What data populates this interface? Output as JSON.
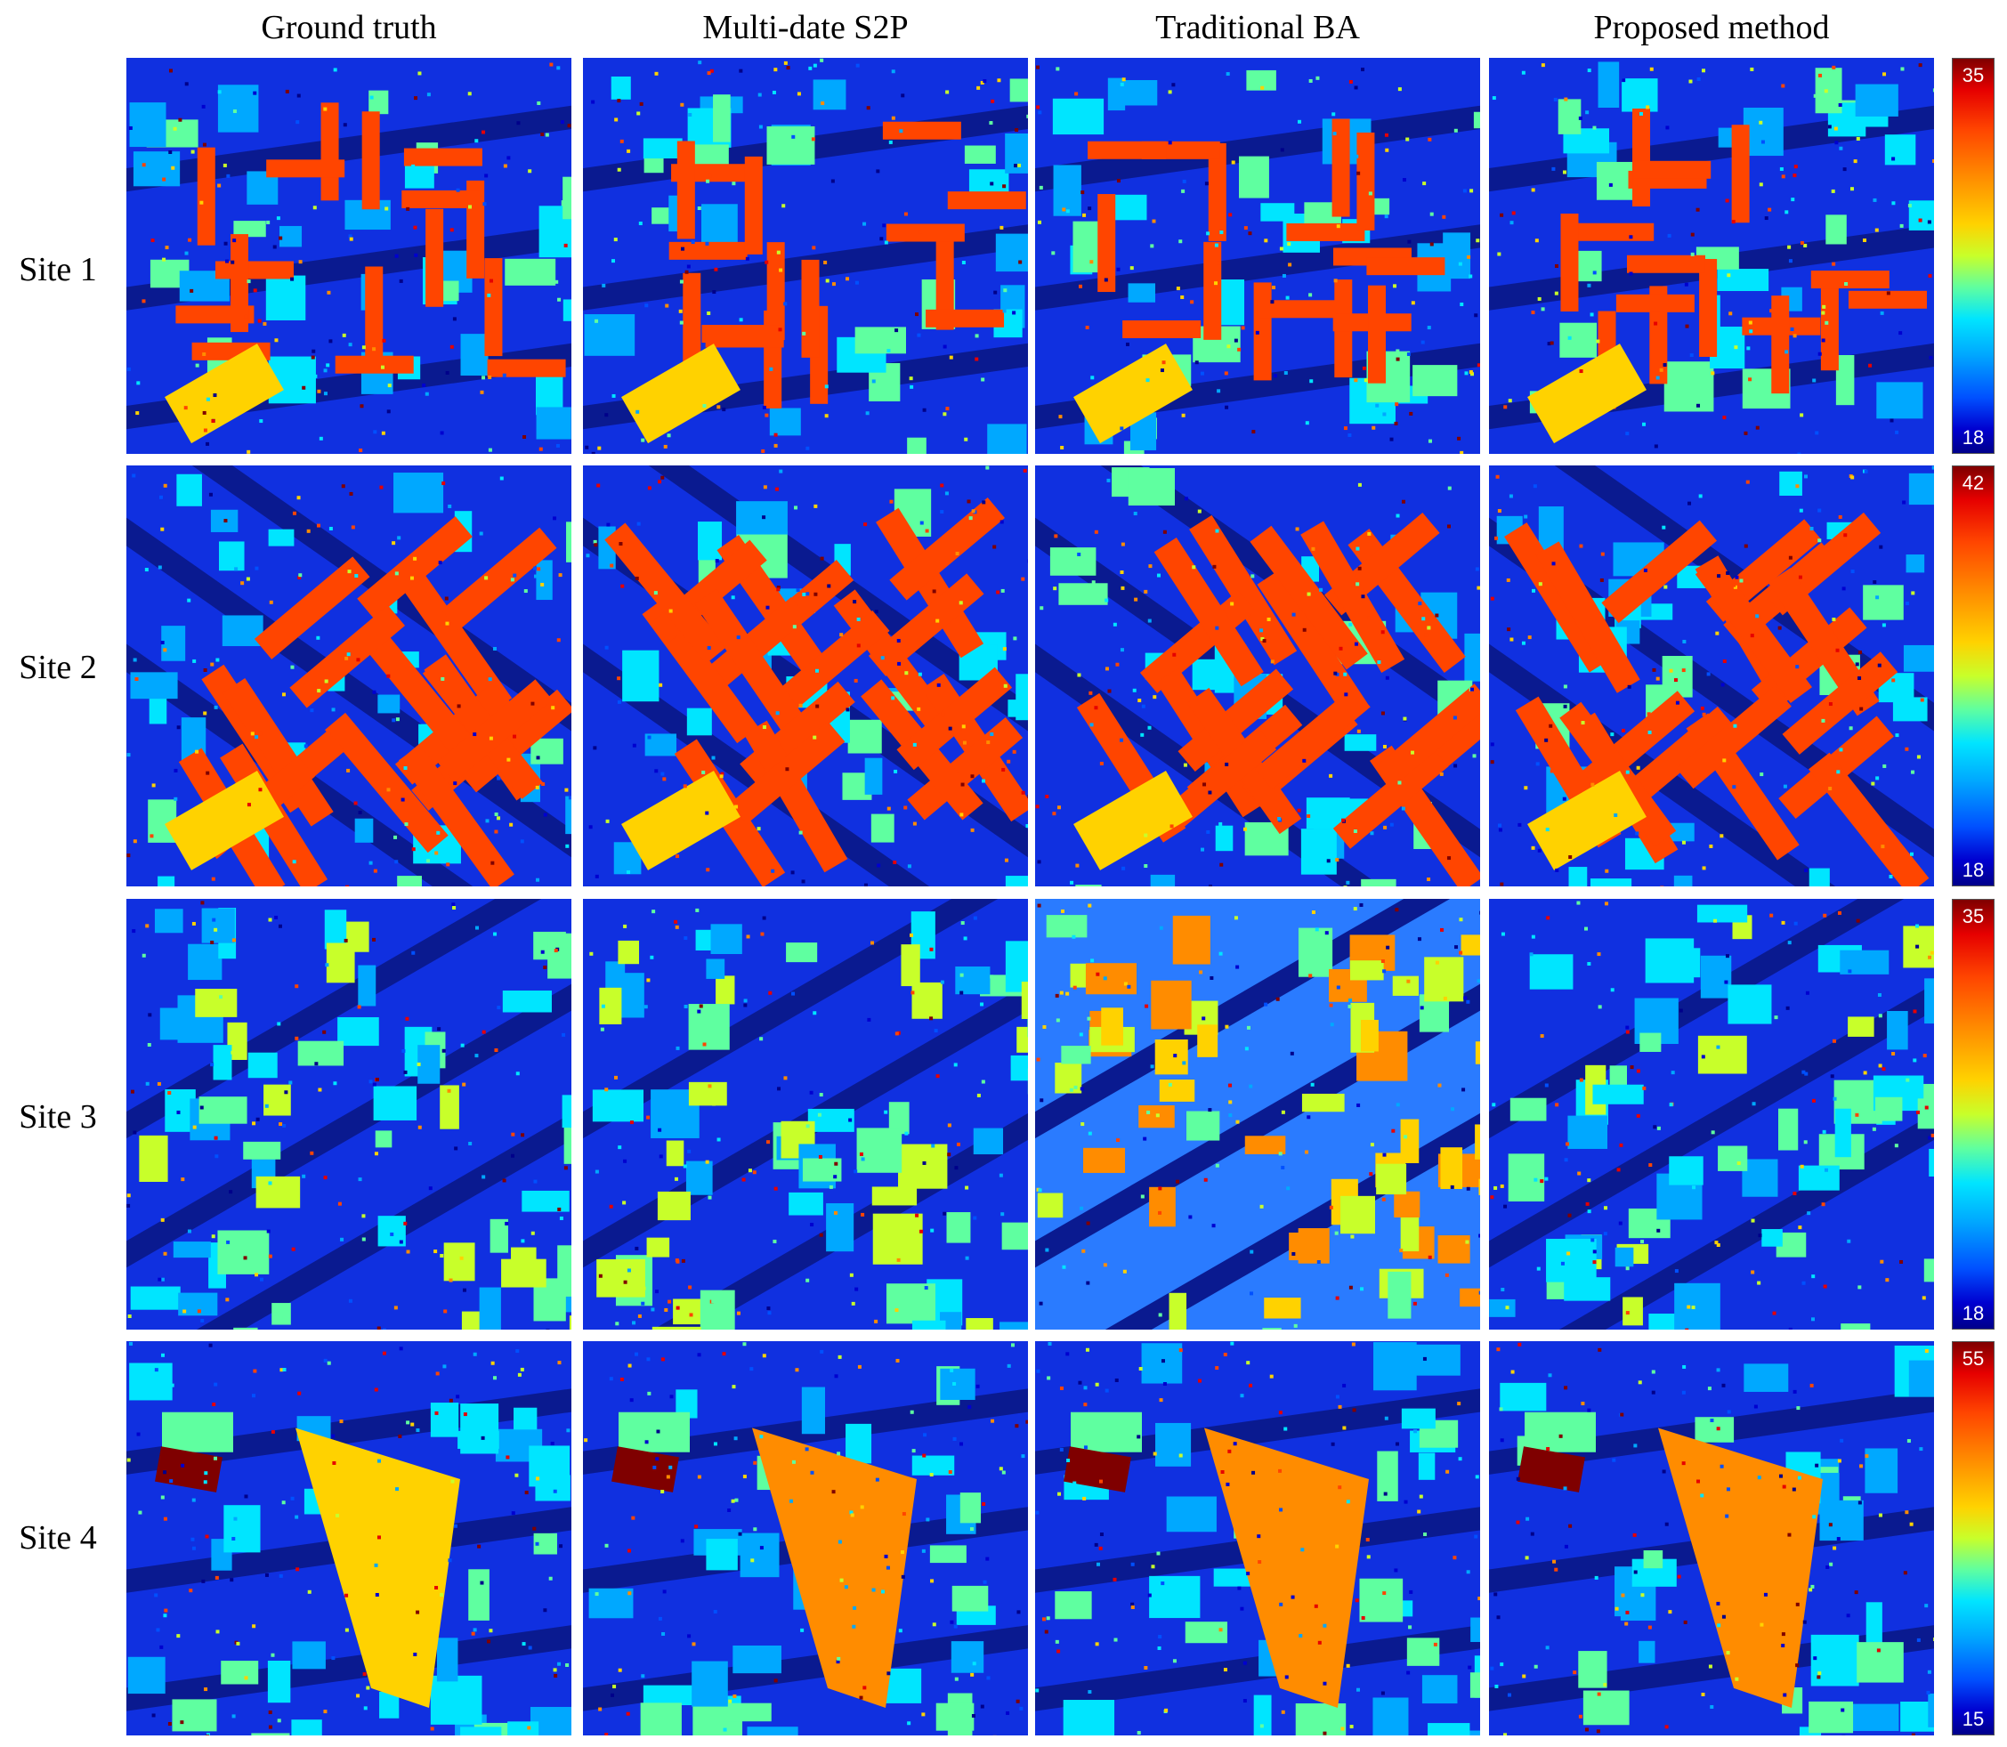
{
  "columns": [
    "Ground truth",
    "Multi-date S2P",
    "Traditional BA",
    "Proposed method"
  ],
  "rows": [
    {
      "label": "Site 1",
      "colorbar": {
        "max": "35",
        "min": "18"
      }
    },
    {
      "label": "Site 2",
      "colorbar": {
        "max": "42",
        "min": "18"
      }
    },
    {
      "label": "Site 3",
      "colorbar": {
        "max": "35",
        "min": "18"
      }
    },
    {
      "label": "Site 4",
      "colorbar": {
        "max": "55",
        "min": "15"
      }
    }
  ],
  "colormap": [
    "#00008a",
    "#0000d0",
    "#0050ff",
    "#00a8ff",
    "#00e5ff",
    "#5fffa0",
    "#c8ff2a",
    "#ffd200",
    "#ff8c00",
    "#ff4500",
    "#e60000",
    "#7f0000"
  ]
}
